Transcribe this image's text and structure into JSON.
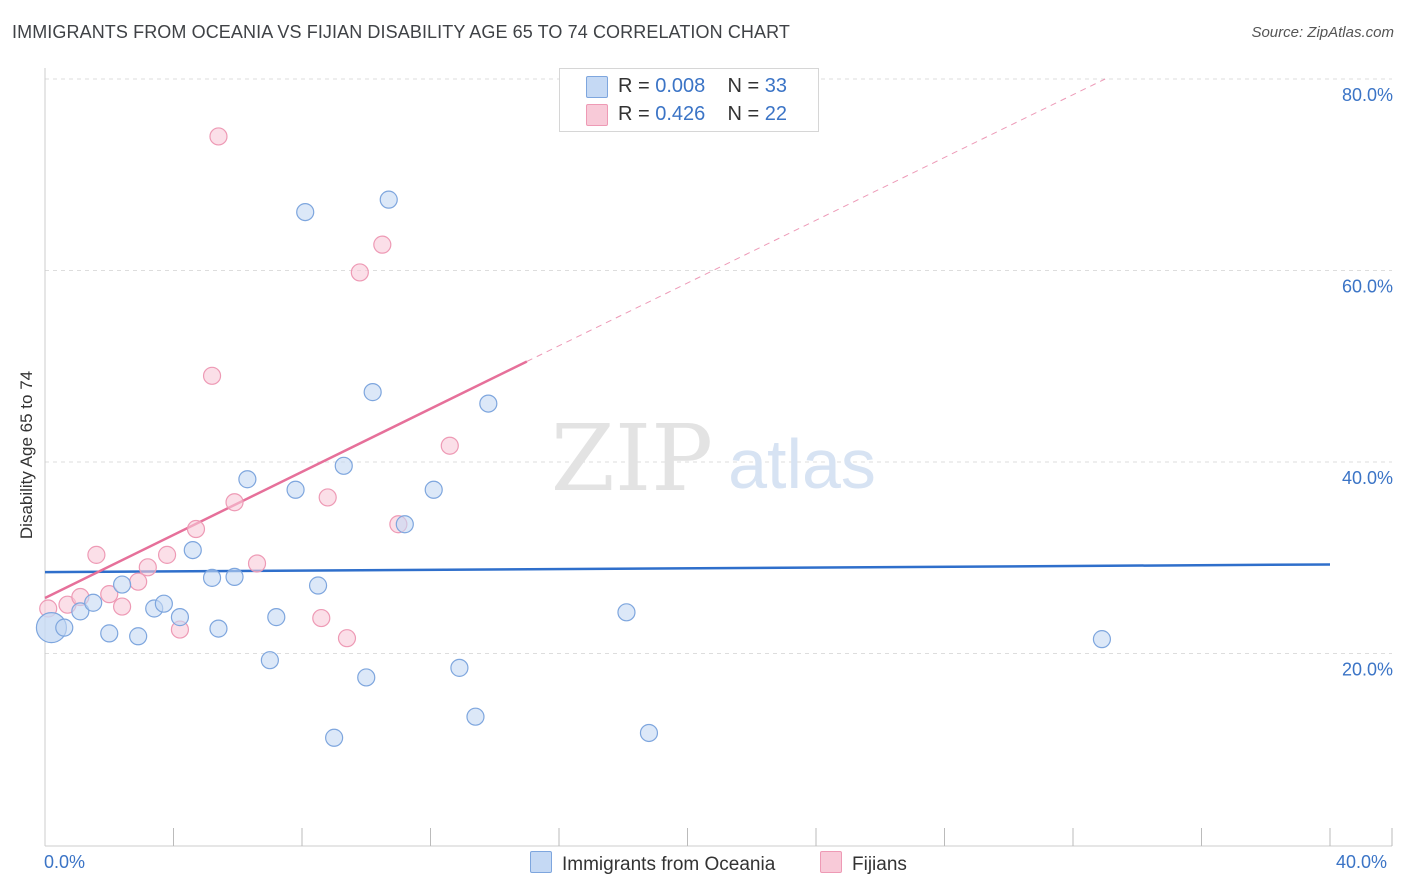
{
  "title": "IMMIGRANTS FROM OCEANIA VS FIJIAN DISABILITY AGE 65 TO 74 CORRELATION CHART",
  "source": "Source: ZipAtlas.com",
  "colors": {
    "blue_fill": "#c5d9f4",
    "blue_stroke": "#7ea6de",
    "blue_line": "#2f6fcb",
    "pink_fill": "#f8cad8",
    "pink_stroke": "#ee9ab5",
    "pink_line": "#e6709a",
    "tick_text": "#3b74c6",
    "grid": "#dddddd"
  },
  "legend": {
    "rows": [
      {
        "r_label": "R = ",
        "r_value": "0.008",
        "n_label": "N = ",
        "n_value": "33"
      },
      {
        "r_label": "R = ",
        "r_value": "0.426",
        "n_label": "N = ",
        "n_value": "22"
      }
    ]
  },
  "bottom_legend": {
    "series1": "Immigrants from Oceania",
    "series2": "Fijians"
  },
  "x_edge_labels": {
    "left": "0.0%",
    "right": "40.0%"
  },
  "watermark": {
    "zip": "ZIP",
    "atlas": "atlas"
  },
  "chart_data": {
    "type": "scatter",
    "title": "IMMIGRANTS FROM OCEANIA VS FIJIAN DISABILITY AGE 65 TO 74 CORRELATION CHART",
    "xlabel": "",
    "ylabel": "Disability Age 65 to 74",
    "xlim": [
      0,
      40
    ],
    "ylim": [
      0,
      80
    ],
    "y_ticks": [
      20,
      40,
      60,
      80
    ],
    "y_tick_labels": [
      "20.0%",
      "40.0%",
      "60.0%",
      "80.0%"
    ],
    "grid": true,
    "series": [
      {
        "name": "Immigrants from Oceania",
        "R": 0.008,
        "N": 33,
        "trend": {
          "x": [
            0,
            40
          ],
          "y": [
            28.5,
            29.3
          ],
          "style": "solid"
        },
        "points": [
          {
            "x": 0.2,
            "y": 22.7,
            "big": true
          },
          {
            "x": 0.6,
            "y": 22.7
          },
          {
            "x": 1.1,
            "y": 24.4
          },
          {
            "x": 1.5,
            "y": 25.3
          },
          {
            "x": 2.0,
            "y": 22.1
          },
          {
            "x": 2.4,
            "y": 27.2
          },
          {
            "x": 2.9,
            "y": 21.8
          },
          {
            "x": 3.4,
            "y": 24.7
          },
          {
            "x": 3.7,
            "y": 25.2
          },
          {
            "x": 4.2,
            "y": 23.8
          },
          {
            "x": 4.6,
            "y": 30.8
          },
          {
            "x": 5.2,
            "y": 27.9
          },
          {
            "x": 5.4,
            "y": 22.6
          },
          {
            "x": 5.9,
            "y": 28.0
          },
          {
            "x": 6.3,
            "y": 38.2
          },
          {
            "x": 7.0,
            "y": 19.3
          },
          {
            "x": 7.2,
            "y": 23.8
          },
          {
            "x": 7.8,
            "y": 37.1
          },
          {
            "x": 8.1,
            "y": 66.1
          },
          {
            "x": 8.5,
            "y": 27.1
          },
          {
            "x": 9.0,
            "y": 11.2
          },
          {
            "x": 9.3,
            "y": 39.6
          },
          {
            "x": 10.0,
            "y": 17.5
          },
          {
            "x": 10.2,
            "y": 47.3
          },
          {
            "x": 10.7,
            "y": 67.4
          },
          {
            "x": 11.2,
            "y": 33.5
          },
          {
            "x": 12.1,
            "y": 37.1
          },
          {
            "x": 12.9,
            "y": 18.5
          },
          {
            "x": 13.4,
            "y": 13.4
          },
          {
            "x": 13.8,
            "y": 46.1
          },
          {
            "x": 18.1,
            "y": 24.3
          },
          {
            "x": 18.8,
            "y": 11.7
          },
          {
            "x": 32.9,
            "y": 21.5
          }
        ]
      },
      {
        "name": "Fijians",
        "R": 0.426,
        "N": 22,
        "trend": {
          "x": [
            0,
            15
          ],
          "y": [
            25.8,
            50.5
          ],
          "style": "solid",
          "extension": {
            "x": [
              15,
              33
            ],
            "y": [
              50.5,
              80.0
            ],
            "style": "dashed"
          }
        },
        "points": [
          {
            "x": 0.1,
            "y": 24.7
          },
          {
            "x": 0.7,
            "y": 25.1
          },
          {
            "x": 1.1,
            "y": 25.9
          },
          {
            "x": 1.6,
            "y": 30.3
          },
          {
            "x": 2.0,
            "y": 26.2
          },
          {
            "x": 2.4,
            "y": 24.9
          },
          {
            "x": 2.9,
            "y": 27.5
          },
          {
            "x": 3.2,
            "y": 29.0
          },
          {
            "x": 3.8,
            "y": 30.3
          },
          {
            "x": 4.2,
            "y": 22.5
          },
          {
            "x": 4.7,
            "y": 33.0
          },
          {
            "x": 5.2,
            "y": 49.0
          },
          {
            "x": 5.4,
            "y": 74.0
          },
          {
            "x": 5.9,
            "y": 35.8
          },
          {
            "x": 6.6,
            "y": 29.4
          },
          {
            "x": 8.6,
            "y": 23.7
          },
          {
            "x": 8.8,
            "y": 36.3
          },
          {
            "x": 9.4,
            "y": 21.6
          },
          {
            "x": 9.8,
            "y": 59.8
          },
          {
            "x": 10.5,
            "y": 62.7
          },
          {
            "x": 11.0,
            "y": 33.5
          },
          {
            "x": 12.6,
            "y": 41.7
          }
        ]
      }
    ]
  }
}
